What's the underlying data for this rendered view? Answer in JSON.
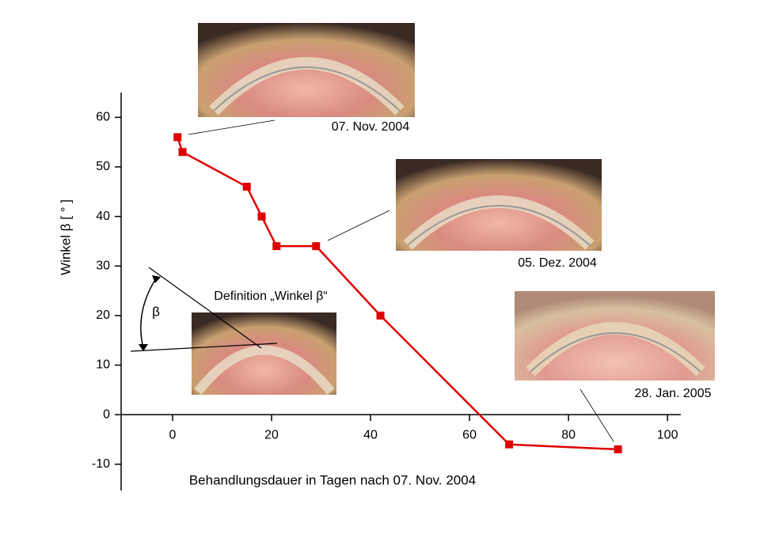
{
  "chart_data": {
    "type": "line",
    "x_label": "Behandlungsdauer in Tagen nach 07. Nov. 2004",
    "y_label": "Winkel β  [ ° ]",
    "x": [
      1,
      2,
      15,
      18,
      21,
      29,
      42,
      68,
      90
    ],
    "series": [
      {
        "color": "#e00000",
        "values": [
          56,
          53,
          46,
          40,
          34,
          34,
          20,
          -6,
          -7
        ]
      }
    ],
    "xlim": [
      -10.4,
      102.7
    ],
    "ylim": [
      -15.3,
      65
    ],
    "xticks": [
      0,
      20,
      40,
      60,
      80,
      100
    ],
    "yticks": [
      -10,
      0,
      10,
      20,
      30,
      40,
      50,
      60
    ],
    "annotations": [
      "07. Nov. 2004",
      "05. Dez. 2004",
      "28. Jan. 2005",
      "Definition „Winkel β“",
      "β"
    ]
  }
}
